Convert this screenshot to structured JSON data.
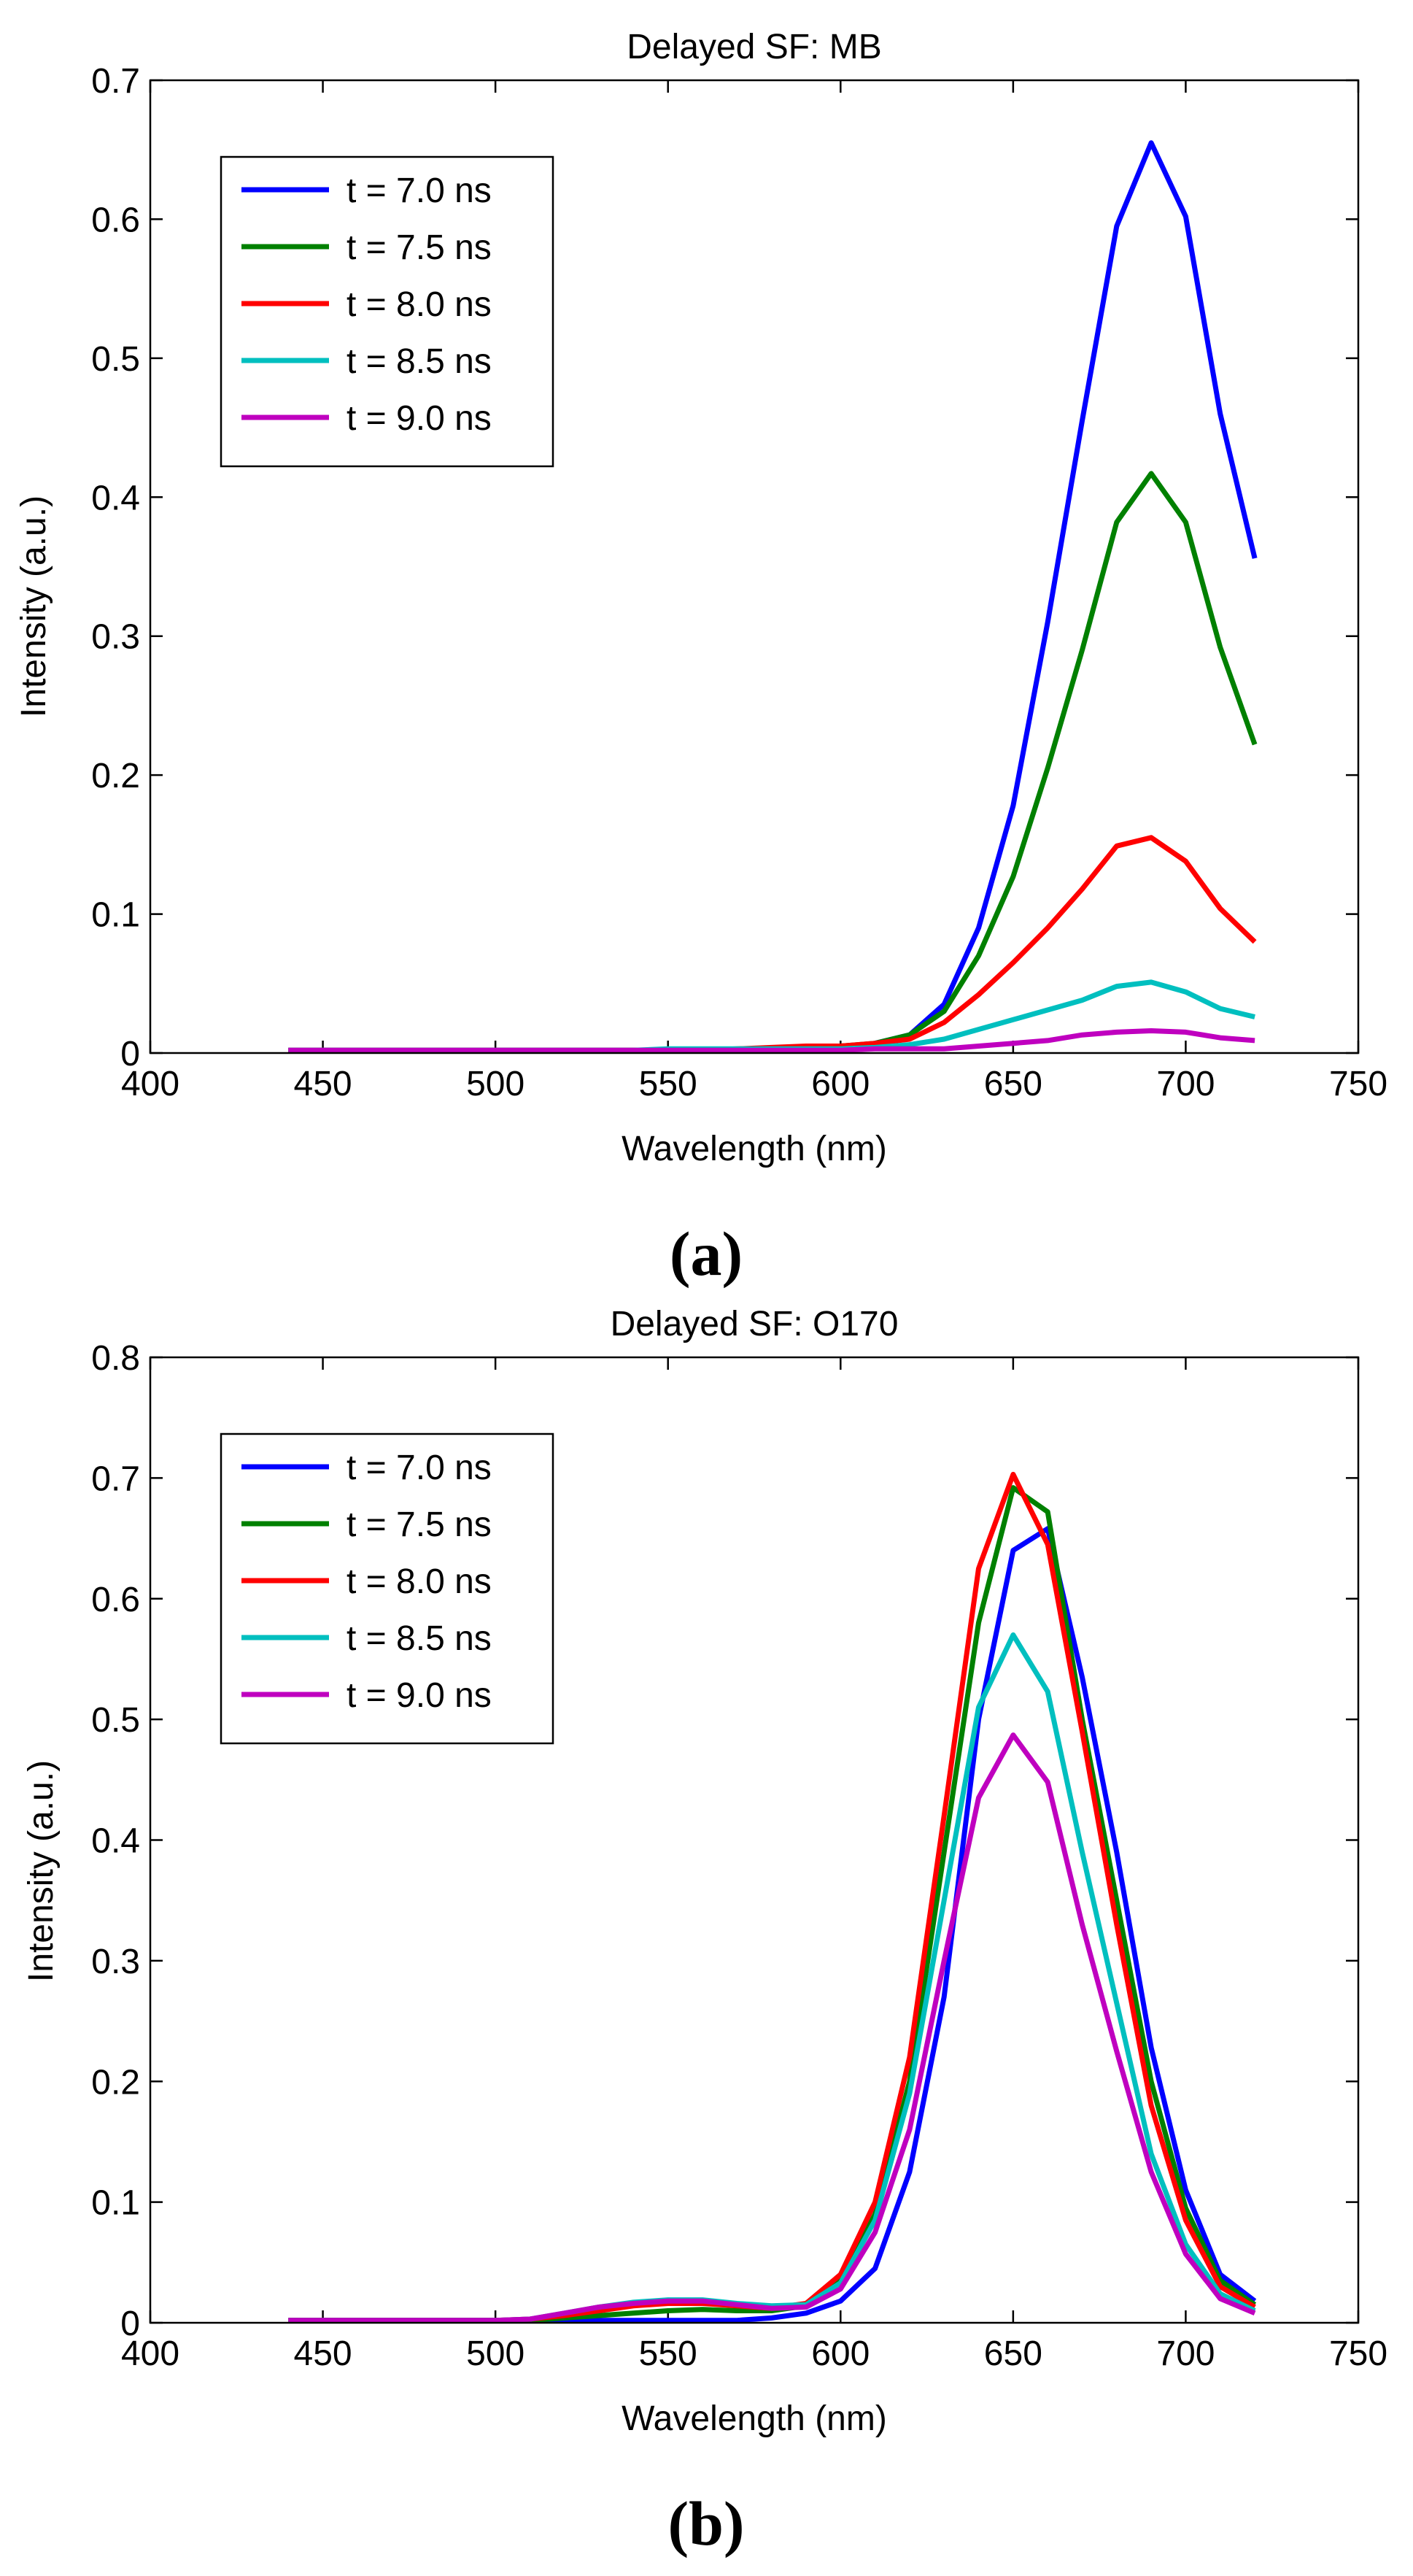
{
  "chart_data": [
    {
      "type": "line",
      "title": "Delayed SF: MB",
      "xlabel": "Wavelength (nm)",
      "ylabel": "Intensity (a.u.)",
      "panel_label": "(a)",
      "xlim": [
        400,
        750
      ],
      "ylim": [
        0,
        0.7
      ],
      "xticks": [
        400,
        450,
        500,
        550,
        600,
        650,
        700,
        750
      ],
      "yticks": [
        0,
        0.1,
        0.2,
        0.3,
        0.4,
        0.5,
        0.6,
        0.7
      ],
      "ytick_labels": [
        "0",
        "0.1",
        "0.2",
        "0.3",
        "0.4",
        "0.5",
        "0.6",
        "0.7"
      ],
      "grid": false,
      "legend_position": "top-left",
      "x": [
        440,
        450,
        460,
        470,
        480,
        490,
        500,
        510,
        520,
        530,
        540,
        550,
        560,
        570,
        580,
        590,
        600,
        610,
        620,
        630,
        640,
        650,
        660,
        670,
        680,
        690,
        700,
        710,
        720
      ],
      "series": [
        {
          "name": "t = 7.0 ns",
          "color": "#0000ff",
          "values": [
            0.002,
            0.002,
            0.002,
            0.002,
            0.002,
            0.002,
            0.002,
            0.002,
            0.002,
            0.002,
            0.002,
            0.002,
            0.002,
            0.002,
            0.002,
            0.003,
            0.004,
            0.007,
            0.013,
            0.035,
            0.09,
            0.178,
            0.31,
            0.455,
            0.595,
            0.655,
            0.602,
            0.46,
            0.356
          ]
        },
        {
          "name": "t = 7.5 ns",
          "color": "#008000",
          "values": [
            0.002,
            0.002,
            0.002,
            0.002,
            0.002,
            0.002,
            0.002,
            0.002,
            0.002,
            0.002,
            0.002,
            0.002,
            0.002,
            0.002,
            0.003,
            0.004,
            0.005,
            0.007,
            0.013,
            0.03,
            0.07,
            0.127,
            0.205,
            0.29,
            0.382,
            0.417,
            0.382,
            0.292,
            0.222
          ]
        },
        {
          "name": "t = 8.0 ns",
          "color": "#ff0000",
          "values": [
            0.002,
            0.002,
            0.002,
            0.002,
            0.002,
            0.002,
            0.002,
            0.002,
            0.002,
            0.002,
            0.002,
            0.002,
            0.002,
            0.003,
            0.004,
            0.005,
            0.005,
            0.007,
            0.01,
            0.022,
            0.042,
            0.065,
            0.09,
            0.118,
            0.149,
            0.155,
            0.138,
            0.104,
            0.08
          ]
        },
        {
          "name": "t = 8.5 ns",
          "color": "#00bfbf",
          "values": [
            0.002,
            0.002,
            0.002,
            0.002,
            0.002,
            0.002,
            0.002,
            0.002,
            0.002,
            0.002,
            0.002,
            0.003,
            0.003,
            0.003,
            0.003,
            0.003,
            0.003,
            0.004,
            0.006,
            0.01,
            0.017,
            0.024,
            0.031,
            0.038,
            0.048,
            0.051,
            0.044,
            0.032,
            0.026
          ]
        },
        {
          "name": "t = 9.0 ns",
          "color": "#bf00bf",
          "values": [
            0.002,
            0.002,
            0.002,
            0.002,
            0.002,
            0.002,
            0.002,
            0.002,
            0.002,
            0.002,
            0.002,
            0.002,
            0.002,
            0.002,
            0.002,
            0.002,
            0.002,
            0.003,
            0.003,
            0.003,
            0.005,
            0.007,
            0.009,
            0.013,
            0.015,
            0.016,
            0.015,
            0.011,
            0.009
          ]
        }
      ]
    },
    {
      "type": "line",
      "title": "Delayed SF: O170",
      "xlabel": "Wavelength (nm)",
      "ylabel": "Intensity (a.u.)",
      "panel_label": "(b)",
      "xlim": [
        400,
        750
      ],
      "ylim": [
        0,
        0.8
      ],
      "xticks": [
        400,
        450,
        500,
        550,
        600,
        650,
        700,
        750
      ],
      "yticks": [
        0,
        0.1,
        0.2,
        0.3,
        0.4,
        0.5,
        0.6,
        0.7,
        0.8
      ],
      "ytick_labels": [
        "0",
        "0.1",
        "0.2",
        "0.3",
        "0.4",
        "0.5",
        "0.6",
        "0.7",
        "0.8"
      ],
      "grid": false,
      "legend_position": "top-left",
      "x": [
        440,
        450,
        460,
        470,
        480,
        490,
        500,
        510,
        520,
        530,
        540,
        550,
        560,
        570,
        580,
        590,
        600,
        610,
        620,
        630,
        640,
        650,
        660,
        670,
        680,
        690,
        700,
        710,
        720
      ],
      "series": [
        {
          "name": "t = 7.0 ns",
          "color": "#0000ff",
          "values": [
            0.002,
            0.002,
            0.002,
            0.002,
            0.002,
            0.002,
            0.002,
            0.002,
            0.002,
            0.002,
            0.002,
            0.002,
            0.002,
            0.002,
            0.004,
            0.008,
            0.018,
            0.045,
            0.125,
            0.27,
            0.5,
            0.64,
            0.658,
            0.535,
            0.39,
            0.228,
            0.11,
            0.04,
            0.018
          ]
        },
        {
          "name": "t = 7.5 ns",
          "color": "#008000",
          "values": [
            0.002,
            0.002,
            0.002,
            0.002,
            0.002,
            0.002,
            0.002,
            0.002,
            0.004,
            0.006,
            0.008,
            0.01,
            0.011,
            0.01,
            0.01,
            0.014,
            0.035,
            0.09,
            0.2,
            0.39,
            0.58,
            0.692,
            0.672,
            0.5,
            0.35,
            0.2,
            0.095,
            0.035,
            0.015
          ]
        },
        {
          "name": "t = 8.0 ns",
          "color": "#ff0000",
          "values": [
            0.002,
            0.002,
            0.002,
            0.002,
            0.002,
            0.002,
            0.002,
            0.003,
            0.006,
            0.01,
            0.014,
            0.016,
            0.016,
            0.014,
            0.012,
            0.016,
            0.04,
            0.1,
            0.22,
            0.42,
            0.625,
            0.703,
            0.645,
            0.49,
            0.33,
            0.18,
            0.085,
            0.03,
            0.013
          ]
        },
        {
          "name": "t = 8.5 ns",
          "color": "#00bfbf",
          "values": [
            0.002,
            0.002,
            0.002,
            0.002,
            0.002,
            0.002,
            0.002,
            0.003,
            0.008,
            0.013,
            0.017,
            0.019,
            0.019,
            0.016,
            0.014,
            0.015,
            0.033,
            0.085,
            0.19,
            0.35,
            0.51,
            0.57,
            0.523,
            0.39,
            0.265,
            0.14,
            0.065,
            0.024,
            0.01
          ]
        },
        {
          "name": "t = 9.0 ns",
          "color": "#bf00bf",
          "values": [
            0.002,
            0.002,
            0.002,
            0.002,
            0.002,
            0.002,
            0.002,
            0.003,
            0.008,
            0.013,
            0.016,
            0.018,
            0.018,
            0.015,
            0.012,
            0.013,
            0.028,
            0.075,
            0.16,
            0.3,
            0.435,
            0.487,
            0.448,
            0.33,
            0.225,
            0.125,
            0.057,
            0.02,
            0.008
          ]
        }
      ]
    }
  ]
}
